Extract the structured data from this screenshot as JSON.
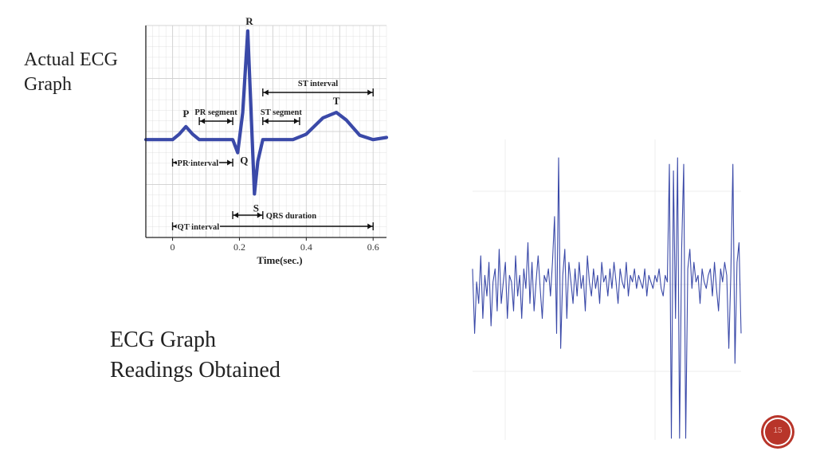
{
  "captions": {
    "actual_lines": [
      "Actual ECG",
      "Graph"
    ],
    "readings_lines": [
      "ECG Graph",
      "Readings Obtained"
    ]
  },
  "slide_number": "15",
  "colors": {
    "trace": "#3a49a8",
    "grid": "#d0d0d0",
    "badge": "#b8352a"
  },
  "chart_data": [
    {
      "type": "line",
      "description_role": "reference ECG waveform",
      "xlabel": "Time(sec.)",
      "x_ticks": [
        0,
        0.2,
        0.4,
        0.6
      ],
      "x_tick_labels": [
        "0",
        "0.2",
        "0.4",
        "0.6"
      ],
      "xlim": [
        -0.08,
        0.64
      ],
      "ylim": [
        -0.9,
        1.05
      ],
      "grid": true,
      "x": [
        -0.08,
        0.0,
        0.02,
        0.04,
        0.06,
        0.08,
        0.18,
        0.195,
        0.21,
        0.225,
        0.245,
        0.255,
        0.27,
        0.36,
        0.4,
        0.45,
        0.49,
        0.52,
        0.56,
        0.6,
        0.64
      ],
      "y": [
        0,
        0,
        0.05,
        0.12,
        0.05,
        0,
        0,
        -0.12,
        0.25,
        1.0,
        -0.5,
        -0.2,
        0,
        0,
        0.05,
        0.2,
        0.25,
        0.18,
        0.04,
        0,
        0.02
      ],
      "waves": [
        {
          "label": "P",
          "x": 0.04,
          "y": 0.12
        },
        {
          "label": "Q",
          "x": 0.195,
          "y": -0.12
        },
        {
          "label": "R",
          "x": 0.225,
          "y": 1.0
        },
        {
          "label": "S",
          "x": 0.245,
          "y": -0.5
        },
        {
          "label": "T",
          "x": 0.49,
          "y": 0.25
        }
      ],
      "intervals": [
        {
          "label": "ST interval",
          "x0": 0.27,
          "x1": 0.6
        },
        {
          "label": "PR segment",
          "x0": 0.08,
          "x1": 0.18
        },
        {
          "label": "ST segment",
          "x0": 0.27,
          "x1": 0.38
        },
        {
          "label": "PR interval",
          "x0": 0.0,
          "x1": 0.18
        },
        {
          "label": "QRS duration",
          "x0": 0.18,
          "x1": 0.27
        },
        {
          "label": "QT interval",
          "x0": 0.0,
          "x1": 0.6
        }
      ]
    },
    {
      "type": "line",
      "description_role": "obtained ECG readings",
      "grid": true,
      "ylim": [
        -1.05,
        1.05
      ],
      "values": [
        0.15,
        -0.3,
        0.05,
        -0.1,
        0.25,
        -0.2,
        0.1,
        -0.05,
        0.2,
        -0.25,
        0.05,
        0.15,
        -0.15,
        0.3,
        -0.1,
        0.05,
        0.2,
        -0.2,
        0.1,
        0.05,
        -0.15,
        0.25,
        -0.05,
        0.1,
        -0.2,
        0.15,
        0.0,
        0.35,
        -0.1,
        0.2,
        -0.15,
        0.05,
        0.25,
        0.0,
        -0.2,
        0.1,
        0.05,
        0.15,
        -0.05,
        0.2,
        0.55,
        -0.3,
        1.0,
        -0.4,
        0.1,
        0.3,
        -0.2,
        0.2,
        0.05,
        -0.1,
        0.15,
        -0.05,
        0.2,
        0.0,
        0.1,
        -0.15,
        0.25,
        0.05,
        -0.05,
        0.15,
        0.0,
        0.1,
        -0.1,
        0.2,
        0.05,
        0.1,
        -0.05,
        0.15,
        0.0,
        0.2,
        0.05,
        -0.1,
        0.15,
        0.05,
        0.0,
        0.2,
        -0.05,
        0.1,
        0.05,
        0.15,
        0.0,
        0.1,
        0.05,
        0.0,
        0.15,
        -0.05,
        0.1,
        0.05,
        0.0,
        0.1,
        0.05,
        0.15,
        0.0,
        -0.05,
        0.1,
        0.05,
        0.95,
        -1.0,
        0.9,
        -0.2,
        1.0,
        -1.0,
        0.3,
        0.95,
        -1.0,
        0.15,
        0.3,
        0.0,
        0.2,
        0.05,
        0.1,
        -0.1,
        0.15,
        0.05,
        0.0,
        0.1,
        0.15,
        -0.05,
        0.2,
        0.0,
        -0.15,
        0.15,
        0.05,
        0.2,
        0.1,
        -0.4,
        0.1,
        0.95,
        -0.5,
        0.2,
        0.35,
        -0.3
      ]
    }
  ]
}
